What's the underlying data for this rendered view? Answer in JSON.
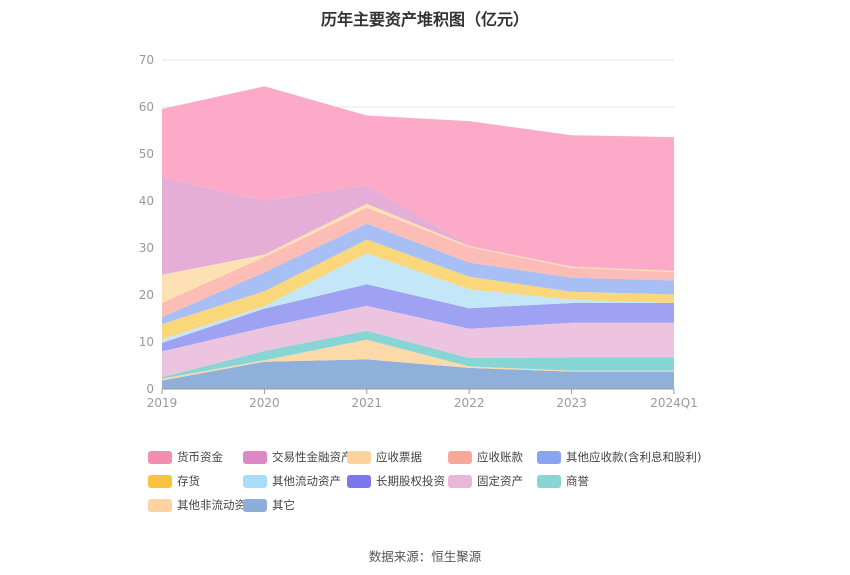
{
  "chart_data": {
    "type": "area",
    "stacked": true,
    "title": "历年主要资产堆积图（亿元）",
    "x": [
      "2019",
      "2020",
      "2021",
      "2022",
      "2023",
      "2024Q1"
    ],
    "y_ticks": [
      "0",
      "10",
      "20",
      "30",
      "40",
      "50",
      "60",
      "70"
    ],
    "ylim": [
      0,
      70
    ],
    "grid": true,
    "legend_position": "bottom",
    "series": [
      {
        "name": "其它",
        "color": "#8eb0da",
        "values": [
          1.8,
          5.8,
          6.3,
          4.5,
          3.7,
          3.7
        ]
      },
      {
        "name": "其他非流动资产",
        "color": "#fbd9a9",
        "values": [
          0.4,
          0.3,
          4.2,
          0.3,
          0.2,
          0.2
        ]
      },
      {
        "name": "商誉",
        "color": "#87d5d4",
        "values": [
          0.3,
          2.0,
          1.9,
          1.8,
          2.8,
          2.8
        ]
      },
      {
        "name": "固定资产",
        "color": "#ecc4df",
        "values": [
          5.5,
          5.0,
          5.3,
          6.2,
          7.4,
          7.4
        ]
      },
      {
        "name": "长期股权投资",
        "color": "#9fa1f3",
        "values": [
          1.8,
          4.0,
          4.6,
          4.4,
          4.2,
          4.2
        ]
      },
      {
        "name": "其他流动资产",
        "color": "#c3e6f9",
        "values": [
          0.8,
          0.5,
          6.6,
          4.0,
          0.7,
          0.0
        ]
      },
      {
        "name": "存货",
        "color": "#fbd77c",
        "values": [
          3.2,
          3.2,
          2.9,
          2.7,
          1.7,
          1.8
        ]
      },
      {
        "name": "其他应收款(含利息和股利)",
        "color": "#a8bff6",
        "values": [
          1.5,
          4.0,
          3.4,
          3.0,
          3.0,
          3.0
        ]
      },
      {
        "name": "应收账款",
        "color": "#fbbdb6",
        "values": [
          3.0,
          3.3,
          3.4,
          3.3,
          2.1,
          1.8
        ]
      },
      {
        "name": "应收票据",
        "color": "#fde0b3",
        "values": [
          6.0,
          0.5,
          0.8,
          0.2,
          0.2,
          0.2
        ]
      },
      {
        "name": "交易性金融资产",
        "color": "#e5aed6",
        "values": [
          20.7,
          11.5,
          4.0,
          0.1,
          0.1,
          0.1
        ]
      },
      {
        "name": "货币资金",
        "color": "#fcaac8",
        "values": [
          14.6,
          24.3,
          14.8,
          26.5,
          27.9,
          28.4
        ]
      }
    ],
    "legend": [
      {
        "name": "货币资金",
        "color": "#f58db1"
      },
      {
        "name": "交易性金融资产",
        "color": "#df88c6"
      },
      {
        "name": "应收票据",
        "color": "#fdd39b"
      },
      {
        "name": "应收账款",
        "color": "#f9a79a"
      },
      {
        "name": "其他应收款(含利息和股利)",
        "color": "#8aa4f4"
      },
      {
        "name": "存货",
        "color": "#fbc23e"
      },
      {
        "name": "其他流动资产",
        "color": "#a9dcf9"
      },
      {
        "name": "长期股权投资",
        "color": "#7b77ee"
      },
      {
        "name": "固定资产",
        "color": "#e9b8d8"
      },
      {
        "name": "商誉",
        "color": "#87d5d4"
      },
      {
        "name": "其他非流动资产",
        "color": "#fdd3a1"
      },
      {
        "name": "其它",
        "color": "#8eaddb"
      }
    ]
  },
  "source_text": "数据来源：恒生聚源"
}
